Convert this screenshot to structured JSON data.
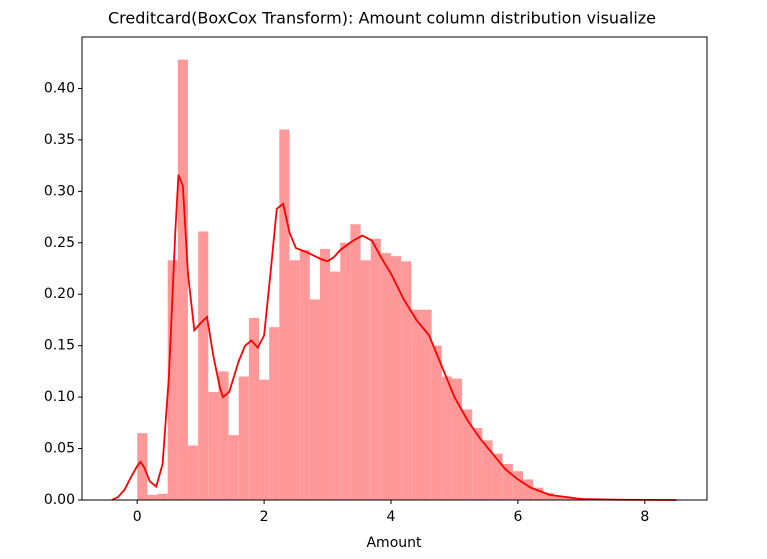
{
  "chart_data": {
    "type": "histogram",
    "title": "Creditcard(BoxCox Transform): Amount column distribution visualize",
    "x_label": "Amount",
    "bins": [
      0,
      0.16,
      0.32,
      0.48,
      0.64,
      0.8,
      0.96,
      1.12,
      1.28,
      1.44,
      1.6,
      1.76,
      1.92,
      2.08,
      2.24,
      2.4,
      2.56,
      2.72,
      2.88,
      3.04,
      3.2,
      3.36,
      3.52,
      3.68,
      3.84,
      4.0,
      4.16,
      4.32,
      4.48,
      4.64,
      4.8,
      4.96,
      5.12,
      5.28,
      5.44,
      5.6,
      5.76,
      5.92,
      6.08,
      6.24,
      6.4,
      6.56,
      6.72,
      6.88,
      7.04,
      7.2,
      7.36,
      7.52,
      7.68,
      7.84,
      8.0
    ],
    "values": [
      0.065,
      0.005,
      0.006,
      0.233,
      0.428,
      0.053,
      0.261,
      0.105,
      0.125,
      0.063,
      0.12,
      0.177,
      0.117,
      0.168,
      0.36,
      0.233,
      0.243,
      0.195,
      0.244,
      0.222,
      0.25,
      0.268,
      0.233,
      0.254,
      0.24,
      0.237,
      0.232,
      0.185,
      0.185,
      0.15,
      0.12,
      0.118,
      0.088,
      0.07,
      0.058,
      0.045,
      0.035,
      0.028,
      0.02,
      0.012,
      0.007,
      0.004,
      0.003,
      0.002,
      0.001,
      0.001,
      0.0005,
      0.0003,
      0.0002,
      0.0001
    ],
    "color": "#ff9999",
    "kde": {
      "color": "#ff0000",
      "x": [
        -0.4,
        -0.3,
        -0.2,
        -0.1,
        0,
        0.05,
        0.1,
        0.2,
        0.3,
        0.4,
        0.5,
        0.6,
        0.65,
        0.72,
        0.8,
        0.9,
        1.0,
        1.1,
        1.2,
        1.3,
        1.35,
        1.45,
        1.6,
        1.7,
        1.8,
        1.9,
        2.0,
        2.1,
        2.2,
        2.3,
        2.4,
        2.5,
        2.7,
        2.9,
        3.0,
        3.1,
        3.2,
        3.4,
        3.55,
        3.7,
        3.85,
        4.0,
        4.2,
        4.4,
        4.6,
        4.8,
        5.0,
        5.2,
        5.4,
        5.6,
        5.8,
        6.0,
        6.2,
        6.5,
        7.0,
        7.5,
        8.0,
        8.5
      ],
      "values": [
        0,
        0.003,
        0.01,
        0.022,
        0.033,
        0.037,
        0.033,
        0.018,
        0.013,
        0.035,
        0.12,
        0.26,
        0.316,
        0.305,
        0.22,
        0.165,
        0.172,
        0.178,
        0.14,
        0.11,
        0.1,
        0.105,
        0.135,
        0.15,
        0.155,
        0.148,
        0.16,
        0.22,
        0.283,
        0.288,
        0.26,
        0.245,
        0.24,
        0.234,
        0.232,
        0.236,
        0.243,
        0.252,
        0.257,
        0.252,
        0.235,
        0.22,
        0.195,
        0.175,
        0.16,
        0.13,
        0.1,
        0.078,
        0.06,
        0.045,
        0.03,
        0.02,
        0.012,
        0.005,
        0.001,
        0.0003,
        0.0001,
        0
      ]
    },
    "xlim": [
      -0.87,
      8.98
    ],
    "xticks": [
      0,
      2,
      4,
      6,
      8
    ],
    "ylim": [
      0,
      0.45
    ],
    "yticks": [
      {
        "value": 0,
        "label": "0.00"
      },
      {
        "value": 0.05,
        "label": "0.05"
      },
      {
        "value": 0.1,
        "label": "0.10"
      },
      {
        "value": 0.15,
        "label": "0.15"
      },
      {
        "value": 0.2,
        "label": "0.20"
      },
      {
        "value": 0.25,
        "label": "0.25"
      },
      {
        "value": 0.3,
        "label": "0.30"
      },
      {
        "value": 0.35,
        "label": "0.35"
      },
      {
        "value": 0.4,
        "label": "0.40"
      }
    ],
    "grid": false
  }
}
